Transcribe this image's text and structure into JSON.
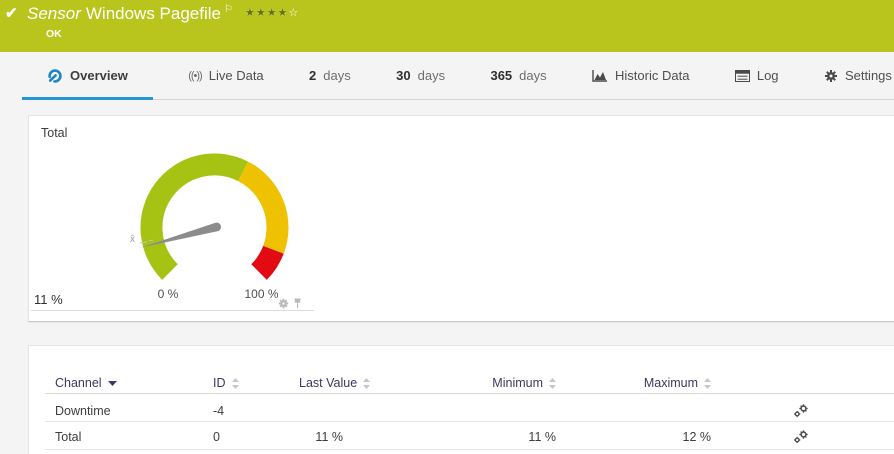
{
  "colors": {
    "status_ok_green": "#b9c51c",
    "accent_blue": "#2797d3",
    "gauge_green": "#a6c313",
    "gauge_yellow": "#eec200",
    "gauge_red": "#e30b13",
    "needle_gray": "#8c8c8c"
  },
  "status_bar": {
    "check_icon": "✔",
    "type_label": "Sensor",
    "sensor_name": "Windows Pagefile",
    "flag_icon": "⚐",
    "stars_filled": "★★★★",
    "stars_empty": "☆",
    "status_text": "OK"
  },
  "tabs": [
    {
      "label": "Overview",
      "icon": "gauge-icon",
      "active": true
    },
    {
      "label": "Live Data",
      "icon": "broadcast-icon",
      "glyph": "((•))"
    },
    {
      "num": "2",
      "label": "days"
    },
    {
      "num": "30",
      "label": "days"
    },
    {
      "num": "365",
      "label": "days"
    },
    {
      "label": "Historic Data",
      "icon": "area-chart-icon"
    },
    {
      "label": "Log",
      "icon": "log-icon"
    },
    {
      "label": "Settings",
      "icon": "gear-icon"
    }
  ],
  "gauge_panel": {
    "title": "Total",
    "current_value": "11 %",
    "scale_min_label": "0 %",
    "scale_max_label": "100 %",
    "mean_marker": "x̄"
  },
  "chart_data": {
    "type": "gauge",
    "title": "Total",
    "value_percent": 11,
    "range": [
      0,
      100
    ],
    "zones": [
      {
        "from": 0,
        "to": 60,
        "color": "#a6c313"
      },
      {
        "from": 60,
        "to": 91,
        "color": "#eec200"
      },
      {
        "from": 91,
        "to": 100,
        "color": "#e30b13"
      }
    ],
    "needle_color": "#8c8c8c",
    "value_label": "11 %",
    "min_label": "0 %",
    "max_label": "100 %"
  },
  "table": {
    "columns": [
      {
        "label": "Channel",
        "sort": "desc"
      },
      {
        "label": "ID",
        "sort": "none"
      },
      {
        "label": "Last Value",
        "sort": "none"
      },
      {
        "label": "Minimum",
        "sort": "none"
      },
      {
        "label": "Maximum",
        "sort": "none"
      }
    ],
    "rows": [
      {
        "channel": "Downtime",
        "id": "-4",
        "last_value": "",
        "minimum": "",
        "maximum": ""
      },
      {
        "channel": "Total",
        "id": "0",
        "last_value": "11 %",
        "minimum": "11 %",
        "maximum": "12 %"
      }
    ]
  }
}
